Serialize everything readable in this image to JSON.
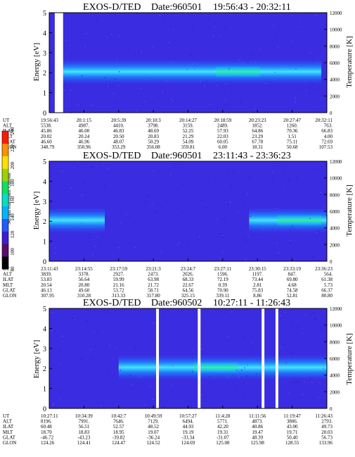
{
  "chart_data": [
    {
      "type": "heatmap",
      "title_prefix": "EXOS-D/TED",
      "date_label": "Date:960501",
      "time_range": "19:56:43 - 20:32:11",
      "ylabel": "Energy [eV]",
      "ylabel_right": "Temperature [K]",
      "ylim": [
        0,
        5
      ],
      "y_ticks": [
        "0",
        "1",
        "2",
        "3",
        "4",
        "5"
      ],
      "ylim_right": [
        0,
        12000
      ],
      "y_ticks_right": [
        "0",
        "2000",
        "4000",
        "6000",
        "8000",
        "10000",
        "12000"
      ],
      "data_gaps": [
        [
          0.02,
          0.05
        ]
      ],
      "band_extent": [
        0.05,
        0.98
      ],
      "band_peak": 0.68,
      "row_labels": [
        "UT",
        "ALT",
        "ILAT",
        "MLT",
        "GLAT",
        "GLON"
      ],
      "columns": [
        [
          "19:56:43",
          "5538.",
          "45.86",
          "20.02",
          "46.60",
          "348.79"
        ],
        [
          "20:1:15",
          "4987.",
          "46.00",
          "20.24",
          "46.96",
          "350.96"
        ],
        [
          "20:5:39",
          "4410.",
          "46.83",
          "20.50",
          "48.07",
          "353.29"
        ],
        [
          "20:10:3",
          "3798.",
          "48.69",
          "20.83",
          "50.29",
          "356.08"
        ],
        [
          "20:14:27",
          "3159.",
          "52.25",
          "21.29",
          "54.09",
          "359.81"
        ],
        [
          "20:18:59",
          "2489.",
          "57.93",
          "22.03",
          "60.05",
          "6.00"
        ],
        [
          "20:23:23",
          "1852.",
          "64.86",
          "23.29",
          "67.78",
          "18.31"
        ],
        [
          "20:27:47",
          "1260.",
          "70.36",
          "1.51",
          "75.11",
          "50.68"
        ],
        [
          "20:32:11",
          "763.",
          "66.83",
          "4.00",
          "72.69",
          "107.53"
        ]
      ]
    },
    {
      "type": "heatmap",
      "title_prefix": "EXOS-D/TED",
      "date_label": "Date:960501",
      "time_range": "23:11:43 - 23:36:23",
      "ylabel": "Energy [eV]",
      "ylabel_right": "Temperature [K]",
      "ylim": [
        0,
        5
      ],
      "y_ticks": [
        "0",
        "1",
        "2",
        "3",
        "4",
        "5"
      ],
      "ylim_right": [
        0,
        12000
      ],
      "y_ticks_right": [
        "0",
        "2000",
        "4000",
        "6000",
        "8000",
        "10000",
        "12000"
      ],
      "data_gaps": [],
      "band_extent": [
        0.0,
        0.2
      ],
      "band_extent_2": [
        0.72,
        1.0
      ],
      "band_peak": 0.9,
      "row_labels": [
        "UT",
        "ALT",
        "ILAT",
        "MLT",
        "GLAT",
        "GLON"
      ],
      "columns": [
        [
          "23:11:43",
          "3839.",
          "53.83",
          "20.54",
          "46.13",
          "307.95"
        ],
        [
          "23:14:55",
          "3378.",
          "56.64",
          "20.80",
          "49.60",
          "310.28"
        ],
        [
          "23:17:59",
          "2927.",
          "59.99",
          "21.16",
          "53.72",
          "313.33"
        ],
        [
          "23:21:3",
          "2473.",
          "63.98",
          "21.72",
          "58.71",
          "317.80"
        ],
        [
          "23:24:7",
          "2026.",
          "68.33",
          "22.67",
          "64.56",
          "325.15"
        ],
        [
          "23:27:11",
          "1596.",
          "72.19",
          "0.39",
          "70.90",
          "339.11"
        ],
        [
          "23:30:15",
          "1197.",
          "73.44",
          "2.81",
          "75.83",
          "8.86"
        ],
        [
          "23:33:19",
          "847.",
          "69.80",
          "4.68",
          "74.58",
          "52.81"
        ],
        [
          "23:36:23",
          "564.",
          "61.38",
          "5.73",
          "66.37",
          "80.80"
        ]
      ]
    },
    {
      "type": "heatmap",
      "title_prefix": "EXOS-D/TED",
      "date_label": "Date:960502",
      "time_range": "10:27:11 - 11:26:43",
      "ylabel": "Energy [eV]",
      "ylabel_right": "Temperature [K]",
      "ylim": [
        0,
        5
      ],
      "y_ticks": [
        "0",
        "1",
        "2",
        "3",
        "4",
        "5"
      ],
      "ylim_right": [
        0,
        12000
      ],
      "y_ticks_right": [
        "0",
        "2000",
        "4000",
        "6000",
        "8000",
        "10000",
        "12000"
      ],
      "data_gaps": [
        [
          0.385,
          0.395
        ],
        [
          0.535,
          0.545
        ],
        [
          0.765,
          0.775
        ],
        [
          0.815,
          0.825
        ]
      ],
      "band_extent": [
        0.25,
        1.0
      ],
      "band_peak": 0.6,
      "row_labels": [
        "UT",
        "ALT",
        "ILAT",
        "MLT",
        "GLAT",
        "GLON"
      ],
      "columns": [
        [
          "10:27:11",
          "8196.",
          "60.48",
          "18.70",
          "-46.72",
          "124.26"
        ],
        [
          "10:34:39",
          "7991.",
          "56.51",
          "18.83",
          "-43.23",
          "124.41"
        ],
        [
          "10:42:7",
          "7646.",
          "52.57",
          "18.95",
          "-39.82",
          "124.47"
        ],
        [
          "10:49:59",
          "7129.",
          "48.52",
          "19.07",
          "-36.24",
          "124.52"
        ],
        [
          "10:57:27",
          "6494.",
          "44.93",
          "19.19",
          "-33.34",
          "124.69"
        ],
        [
          "11:4:28",
          "5771.",
          "42.20",
          "19.31",
          "-31.07",
          "125.08"
        ],
        [
          "11:11:56",
          "4873.",
          "40.86",
          "19.47",
          "48.39",
          "125.98"
        ],
        [
          "11:19:47",
          "3806.",
          "43.00",
          "19.71",
          "50.40",
          "128.55"
        ],
        [
          "11:26:43",
          "2793.",
          "49.73",
          "20.03",
          "56.73",
          "133.96"
        ]
      ]
    }
  ],
  "colorbar": {
    "label": "Second Harmonic Current",
    "ticks": [
      "80",
      "100",
      "120",
      "140",
      "160",
      "180",
      "200",
      "220",
      "240"
    ],
    "colors": [
      "#000000",
      "#5a0a70",
      "#3b1fd2",
      "#1e5cff",
      "#00b4ff",
      "#00e0c8",
      "#10e060",
      "#9ad400",
      "#ffe000",
      "#ff9000",
      "#ff1a00"
    ]
  }
}
